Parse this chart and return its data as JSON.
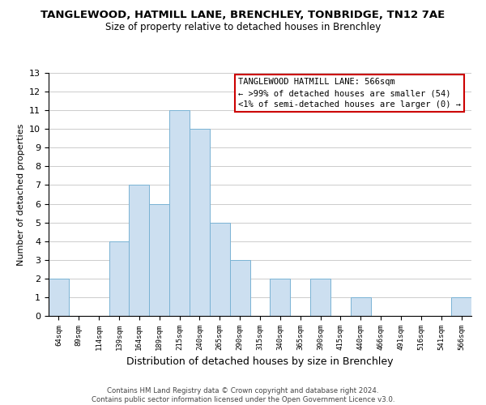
{
  "title": "TANGLEWOOD, HATMILL LANE, BRENCHLEY, TONBRIDGE, TN12 7AE",
  "subtitle": "Size of property relative to detached houses in Brenchley",
  "xlabel": "Distribution of detached houses by size in Brenchley",
  "ylabel": "Number of detached properties",
  "bar_color": "#ccdff0",
  "bar_edge_color": "#7ab3d4",
  "categories": [
    "64sqm",
    "89sqm",
    "114sqm",
    "139sqm",
    "164sqm",
    "189sqm",
    "215sqm",
    "240sqm",
    "265sqm",
    "290sqm",
    "315sqm",
    "340sqm",
    "365sqm",
    "390sqm",
    "415sqm",
    "440sqm",
    "466sqm",
    "491sqm",
    "516sqm",
    "541sqm",
    "566sqm"
  ],
  "values": [
    2,
    0,
    0,
    4,
    7,
    6,
    11,
    10,
    5,
    3,
    0,
    2,
    0,
    2,
    0,
    1,
    0,
    0,
    0,
    0,
    1
  ],
  "ylim": [
    0,
    13
  ],
  "yticks": [
    0,
    1,
    2,
    3,
    4,
    5,
    6,
    7,
    8,
    9,
    10,
    11,
    12,
    13
  ],
  "legend_title": "TANGLEWOOD HATMILL LANE: 566sqm",
  "legend_line1": "← >99% of detached houses are smaller (54)",
  "legend_line2": "<1% of semi-detached houses are larger (0) →",
  "legend_box_color": "#ffffff",
  "legend_box_edgecolor": "#cc0000",
  "footer_line1": "Contains HM Land Registry data © Crown copyright and database right 2024.",
  "footer_line2": "Contains public sector information licensed under the Open Government Licence v3.0.",
  "background_color": "#ffffff",
  "grid_color": "#cccccc",
  "title_fontsize": 9.5,
  "subtitle_fontsize": 8.5
}
